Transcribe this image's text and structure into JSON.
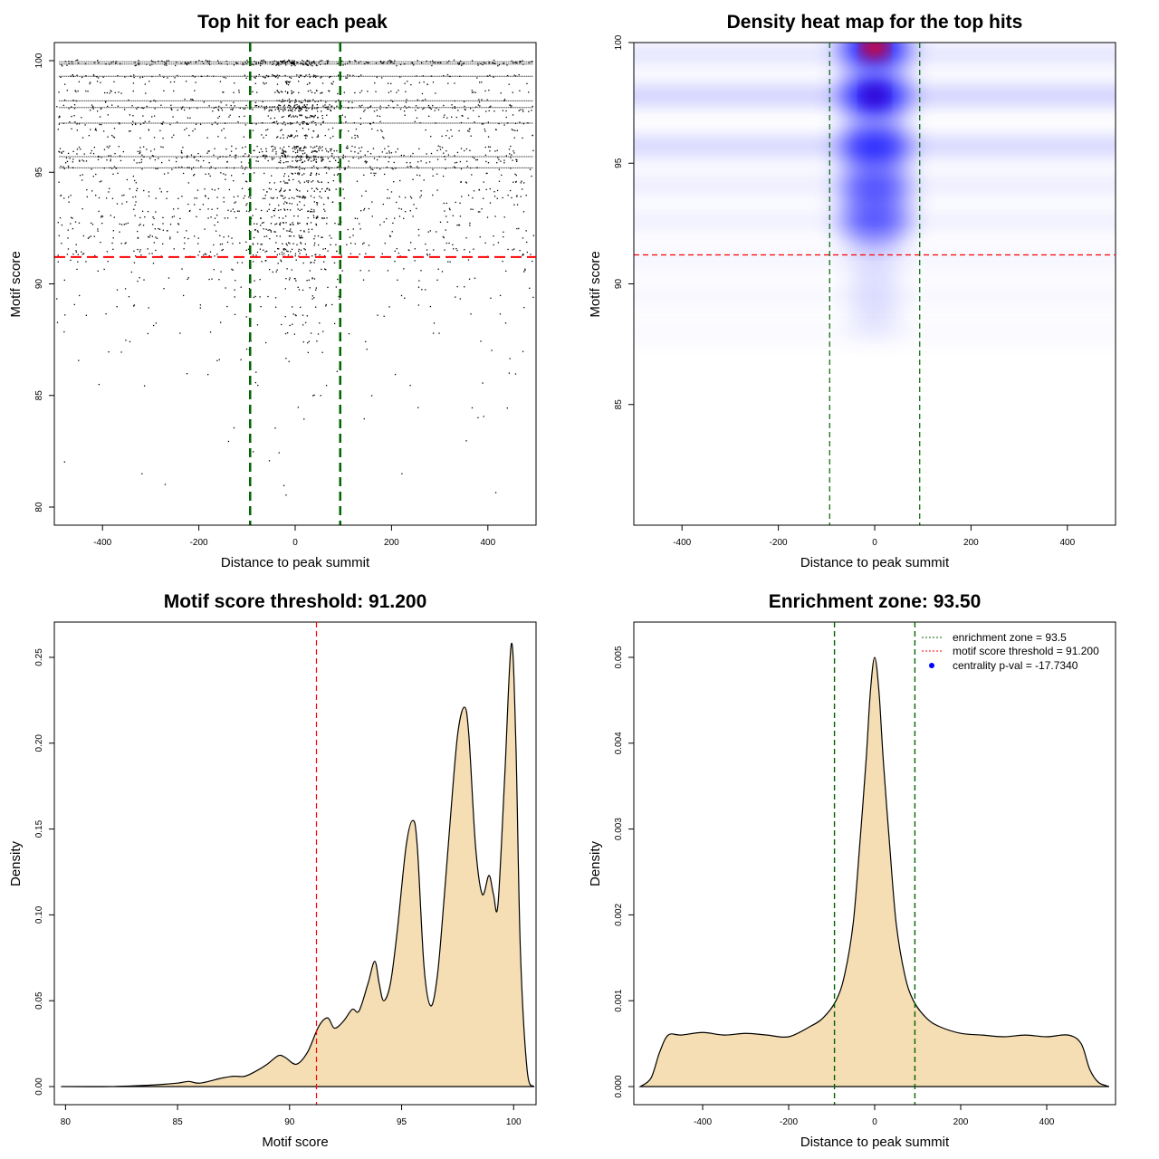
{
  "chart_data": [
    {
      "type": "scatter",
      "title": "Top hit for each peak",
      "xlabel": "Distance to peak summit",
      "ylabel": "Motif score",
      "xlim": [
        -500,
        500
      ],
      "ylim": [
        80,
        100
      ],
      "xticks": [
        -400,
        -200,
        0,
        200,
        400
      ],
      "yticks": [
        80,
        85,
        90,
        95,
        100
      ],
      "hline": {
        "y": 91.2,
        "color": "#ff0000",
        "style": "dashed"
      },
      "vlines": [
        {
          "x": -93.5,
          "color": "#006400",
          "style": "dashed"
        },
        {
          "x": 93.5,
          "color": "#006400",
          "style": "dashed"
        }
      ],
      "grid": false
    },
    {
      "type": "heatmap",
      "title": "Density heat map for the top hits",
      "xlabel": "Distance to peak summit",
      "ylabel": "Motif score",
      "xlim": [
        -500,
        500
      ],
      "ylim": [
        80,
        100
      ],
      "xticks": [
        -400,
        -200,
        0,
        200,
        400
      ],
      "yticks": [
        85,
        90,
        95,
        100
      ],
      "hline": {
        "y": 91.2,
        "color": "#ff0000",
        "style": "dashed"
      },
      "vlines": [
        {
          "x": -93.5,
          "color": "#006400",
          "style": "dashed"
        },
        {
          "x": 93.5,
          "color": "#006400",
          "style": "dashed"
        }
      ],
      "hotspots": [
        {
          "x": 0,
          "y": 99.8,
          "intensity": 1.0
        },
        {
          "x": 0,
          "y": 97.8,
          "intensity": 0.9
        },
        {
          "x": 0,
          "y": 95.7,
          "intensity": 0.75
        },
        {
          "x": 0,
          "y": 94.0,
          "intensity": 0.35
        },
        {
          "x": 0,
          "y": 92.6,
          "intensity": 0.3
        }
      ],
      "colors": {
        "low": "#ffffff",
        "mid": "#0000ff",
        "high": "#ff0000"
      },
      "grid": false
    },
    {
      "type": "area",
      "title": "Motif score threshold: 91.200",
      "xlabel": "Motif score",
      "ylabel": "Density",
      "xlim": [
        79.5,
        101
      ],
      "ylim": [
        0,
        0.26
      ],
      "xticks": [
        80,
        85,
        90,
        95,
        100
      ],
      "yticks": [
        0.0,
        0.05,
        0.1,
        0.15,
        0.2,
        0.25
      ],
      "ytick_labels": [
        "0.00",
        "0.05",
        "0.10",
        "0.15",
        "0.20",
        "0.25"
      ],
      "vline": {
        "x": 91.2,
        "color": "#ff0000",
        "style": "dashed"
      },
      "fill": "#f5deb3",
      "x": [
        79.8,
        82,
        84,
        85,
        85.5,
        86,
        87,
        87.5,
        88,
        88.5,
        89,
        89.5,
        89.8,
        90.3,
        90.8,
        91.3,
        91.7,
        92,
        92.4,
        92.8,
        93.1,
        93.5,
        93.8,
        94.0,
        94.2,
        94.5,
        94.8,
        95.2,
        95.5,
        95.7,
        96.0,
        96.3,
        96.6,
        96.9,
        97.2,
        97.5,
        97.8,
        98.0,
        98.3,
        98.6,
        98.9,
        99.1,
        99.3,
        99.6,
        99.9,
        100.1,
        100.3,
        100.6,
        100.9
      ],
      "y": [
        0.0,
        0.0,
        0.001,
        0.002,
        0.003,
        0.002,
        0.005,
        0.006,
        0.006,
        0.009,
        0.013,
        0.018,
        0.017,
        0.013,
        0.02,
        0.035,
        0.04,
        0.034,
        0.038,
        0.045,
        0.044,
        0.06,
        0.073,
        0.06,
        0.05,
        0.06,
        0.09,
        0.14,
        0.155,
        0.14,
        0.07,
        0.047,
        0.065,
        0.11,
        0.16,
        0.205,
        0.221,
        0.205,
        0.14,
        0.112,
        0.123,
        0.112,
        0.106,
        0.18,
        0.258,
        0.2,
        0.08,
        0.01,
        0.0
      ],
      "grid": false
    },
    {
      "type": "area",
      "title": "Enrichment zone: 93.50",
      "xlabel": "Distance to peak summit",
      "ylabel": "Density",
      "xlim": [
        -560,
        560
      ],
      "ylim": [
        0,
        0.0052
      ],
      "xticks": [
        -400,
        -200,
        0,
        200,
        400
      ],
      "yticks": [
        0.0,
        0.001,
        0.002,
        0.003,
        0.004,
        0.005
      ],
      "ytick_labels": [
        "0.000",
        "0.001",
        "0.002",
        "0.003",
        "0.004",
        "0.005"
      ],
      "vlines": [
        {
          "x": -93.5,
          "color": "#006400",
          "style": "dashed"
        },
        {
          "x": 93.5,
          "color": "#006400",
          "style": "dashed"
        }
      ],
      "fill": "#f5deb3",
      "x": [
        -545,
        -520,
        -500,
        -480,
        -450,
        -400,
        -350,
        -300,
        -250,
        -200,
        -150,
        -120,
        -90,
        -70,
        -50,
        -35,
        -20,
        -10,
        0,
        10,
        20,
        35,
        50,
        70,
        90,
        120,
        150,
        200,
        250,
        300,
        350,
        400,
        450,
        480,
        500,
        520,
        545
      ],
      "y": [
        0.0,
        0.0001,
        0.0004,
        0.0006,
        0.0006,
        0.00063,
        0.0006,
        0.00062,
        0.0006,
        0.00058,
        0.0007,
        0.0008,
        0.001,
        0.0013,
        0.0019,
        0.0028,
        0.0038,
        0.0046,
        0.005,
        0.0046,
        0.0038,
        0.0028,
        0.0019,
        0.0013,
        0.001,
        0.0008,
        0.0007,
        0.00062,
        0.0006,
        0.00058,
        0.0006,
        0.00058,
        0.0006,
        0.0005,
        0.0002,
        5e-05,
        0.0
      ],
      "legend": {
        "position": "top-right",
        "entries": [
          {
            "label": "enrichment zone = 93.5",
            "color": "#006400",
            "kind": "dotted-line"
          },
          {
            "label": "motif score threshold = 91.200",
            "color": "#ff0000",
            "kind": "dotted-line"
          },
          {
            "label": "centrality p-val = -17.7340",
            "color": "#0000ff",
            "kind": "point"
          }
        ]
      },
      "grid": false
    }
  ]
}
